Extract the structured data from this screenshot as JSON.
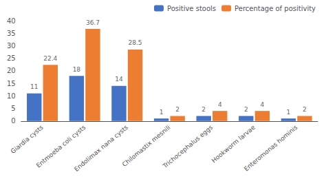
{
  "chart_data": {
    "type": "bar",
    "categories": [
      "Giardia cysts",
      "Entmoeba coli cysts",
      "Endolimax nana cysts",
      "Chilomastix mesnili",
      "Trichocephalus eggs",
      "Hookworm larvae",
      "Enteromonas hominis"
    ],
    "series": [
      {
        "name": "Positive stools",
        "color": "#4472C4",
        "values": [
          11,
          18,
          14,
          1,
          2,
          2,
          1
        ]
      },
      {
        "name": "Percentage of positivity",
        "color": "#ED7D31",
        "values": [
          22.4,
          36.7,
          28.5,
          2,
          4,
          4,
          2
        ]
      }
    ],
    "ylim": [
      0,
      40
    ],
    "yticks": [
      0,
      5,
      10,
      15,
      20,
      25,
      30,
      35,
      40
    ],
    "grid": false,
    "legend": "upper right",
    "data_labels": true
  }
}
